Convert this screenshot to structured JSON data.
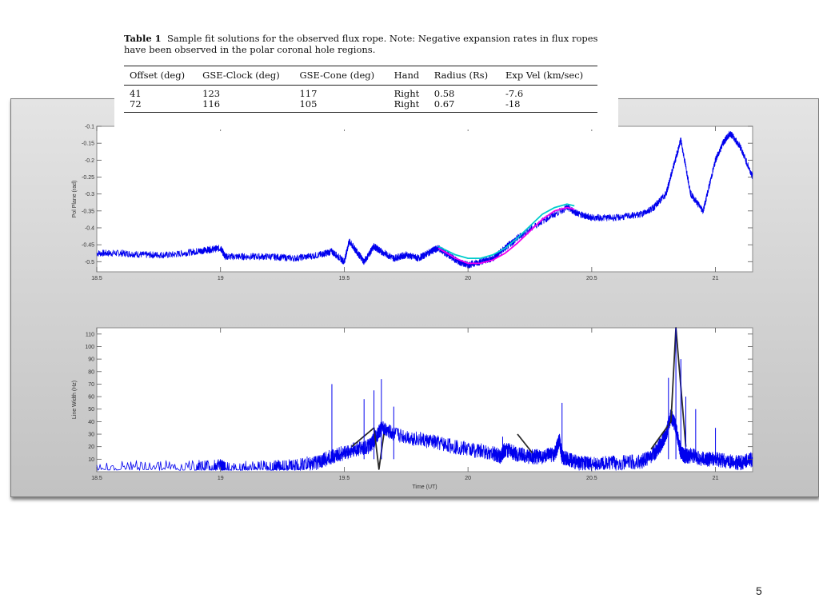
{
  "table": {
    "caption_label": "Table 1",
    "caption_text": "Sample fit solutions for the observed flux rope. Note: Negative expansion rates in flux ropes have been observed in the polar coronal hole regions.",
    "columns": [
      "Offset (deg)",
      "GSE-Clock (deg)",
      "GSE-Cone (deg)",
      "Hand",
      "Radius (Rs)",
      "Exp Vel (km/sec)"
    ],
    "rows": [
      [
        "41",
        "123",
        "117",
        "Right",
        "0.58",
        "-7.6"
      ],
      [
        "72",
        "116",
        "105",
        "Right",
        "0.67",
        "-18"
      ]
    ]
  },
  "page_number": "5",
  "chart_data": [
    {
      "type": "line",
      "ylabel": "Pol Plane (rad)",
      "xlabel": "",
      "xlim": [
        18.5,
        21.15
      ],
      "ylim": [
        -0.53,
        -0.1
      ],
      "x_ticks": [
        18.5,
        19,
        19.5,
        20,
        20.5,
        21
      ],
      "x_tick_labels": [
        "18.5",
        "19",
        "19.5",
        "20",
        "20.5",
        "21"
      ],
      "y_ticks": [
        -0.1,
        -0.15,
        -0.2,
        -0.25,
        -0.3,
        -0.35,
        -0.4,
        -0.45,
        -0.5
      ],
      "y_tick_labels": [
        "-0.1",
        "-0.15",
        "-0.2",
        "-0.25",
        "-0.3",
        "-0.35",
        "-0.4",
        "-0.45",
        "-0.5"
      ],
      "grid": false,
      "series": [
        {
          "color": "#0000ee",
          "x": [
            18.5,
            18.6,
            18.7,
            18.8,
            18.9,
            18.95,
            19.0,
            19.02,
            19.1,
            19.2,
            19.3,
            19.4,
            19.45,
            19.5,
            19.52,
            19.55,
            19.58,
            19.62,
            19.65,
            19.7,
            19.75,
            19.8,
            19.85,
            19.88,
            19.92,
            19.96,
            20.0,
            20.05,
            20.1,
            20.15,
            20.2,
            20.3,
            20.4,
            20.45,
            20.5,
            20.6,
            20.7,
            20.75,
            20.8,
            20.83,
            20.86,
            20.9,
            20.95,
            21.0,
            21.03,
            21.06,
            21.1,
            21.15
          ],
          "y": [
            -0.475,
            -0.475,
            -0.48,
            -0.48,
            -0.47,
            -0.465,
            -0.46,
            -0.485,
            -0.485,
            -0.485,
            -0.49,
            -0.48,
            -0.47,
            -0.5,
            -0.44,
            -0.47,
            -0.5,
            -0.455,
            -0.47,
            -0.49,
            -0.48,
            -0.49,
            -0.47,
            -0.46,
            -0.48,
            -0.5,
            -0.51,
            -0.5,
            -0.49,
            -0.46,
            -0.43,
            -0.38,
            -0.34,
            -0.36,
            -0.37,
            -0.37,
            -0.36,
            -0.34,
            -0.3,
            -0.22,
            -0.14,
            -0.3,
            -0.35,
            -0.2,
            -0.15,
            -0.12,
            -0.16,
            -0.25
          ],
          "noise": 0.01
        },
        {
          "color": "#ee00ee",
          "x": [
            19.88,
            19.95,
            20.0,
            20.05,
            20.1,
            20.15,
            20.2,
            20.25,
            20.3,
            20.35,
            20.4,
            20.43
          ],
          "y": [
            -0.46,
            -0.49,
            -0.505,
            -0.505,
            -0.495,
            -0.475,
            -0.445,
            -0.41,
            -0.375,
            -0.35,
            -0.34,
            -0.345
          ]
        },
        {
          "color": "#00cccc",
          "x": [
            19.88,
            19.95,
            20.0,
            20.05,
            20.1,
            20.15,
            20.2,
            20.25,
            20.3,
            20.35,
            20.4,
            20.43
          ],
          "y": [
            -0.455,
            -0.48,
            -0.49,
            -0.49,
            -0.48,
            -0.46,
            -0.43,
            -0.395,
            -0.36,
            -0.34,
            -0.33,
            -0.335
          ]
        }
      ]
    },
    {
      "type": "line",
      "ylabel": "Line Width (Hz)",
      "xlabel": "Time (UT)",
      "xlim": [
        18.5,
        21.15
      ],
      "ylim": [
        0,
        115
      ],
      "x_ticks": [
        18.5,
        19,
        19.5,
        20,
        20.5,
        21
      ],
      "x_tick_labels": [
        "18.5",
        "19",
        "19.5",
        "20",
        "20.5",
        "21"
      ],
      "y_ticks": [
        10,
        20,
        30,
        40,
        50,
        60,
        70,
        80,
        90,
        100,
        110
      ],
      "y_tick_labels": [
        "10",
        "20",
        "30",
        "40",
        "50",
        "60",
        "70",
        "80",
        "90",
        "100",
        "110"
      ],
      "grid": false,
      "series": [
        {
          "color": "#0000ee",
          "x": [
            18.5,
            18.9,
            19.0,
            19.02,
            19.2,
            19.3,
            19.4,
            19.45,
            19.5,
            19.55,
            19.6,
            19.62,
            19.65,
            19.7,
            19.8,
            19.9,
            20.0,
            20.1,
            20.13,
            20.15,
            20.2,
            20.25,
            20.3,
            20.35,
            20.37,
            20.38,
            20.4,
            20.45,
            20.5,
            20.6,
            20.7,
            20.75,
            20.78,
            20.8,
            20.82,
            20.84,
            20.86,
            20.88,
            20.9,
            20.95,
            21.0,
            21.05,
            21.1,
            21.15
          ],
          "y": [
            3,
            3,
            4,
            2,
            3,
            4,
            8,
            12,
            15,
            18,
            20,
            25,
            35,
            30,
            26,
            22,
            18,
            15,
            12,
            18,
            14,
            12,
            12,
            14,
            25,
            12,
            10,
            7,
            6,
            7,
            8,
            14,
            22,
            30,
            45,
            35,
            15,
            12,
            13,
            10,
            10,
            8,
            7,
            10
          ],
          "noise": 6
        },
        {
          "color": "#2a2a2a",
          "x": [
            19.53,
            19.62,
            19.64,
            19.66
          ],
          "y": [
            20,
            35,
            2,
            30
          ]
        },
        {
          "color": "#2a2a2a",
          "x": [
            20.2,
            20.26
          ],
          "y": [
            30,
            15
          ]
        },
        {
          "color": "#2a2a2a",
          "x": [
            20.74,
            20.82,
            20.84,
            20.88
          ],
          "y": [
            18,
            40,
            115,
            20
          ]
        }
      ],
      "spikes": [
        {
          "x": 19.45,
          "y": 70
        },
        {
          "x": 19.58,
          "y": 58
        },
        {
          "x": 19.62,
          "y": 65
        },
        {
          "x": 19.65,
          "y": 74
        },
        {
          "x": 19.7,
          "y": 52
        },
        {
          "x": 20.14,
          "y": 28
        },
        {
          "x": 20.38,
          "y": 55
        },
        {
          "x": 20.81,
          "y": 75
        },
        {
          "x": 20.84,
          "y": 115
        },
        {
          "x": 20.86,
          "y": 90
        },
        {
          "x": 20.88,
          "y": 60
        },
        {
          "x": 20.92,
          "y": 50
        },
        {
          "x": 21.0,
          "y": 35
        }
      ]
    }
  ]
}
